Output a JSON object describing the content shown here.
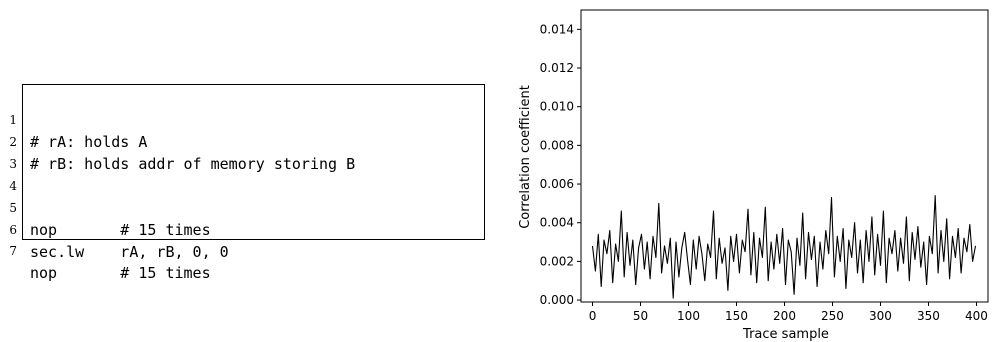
{
  "listing": {
    "lines": [
      {
        "no": "1",
        "text": "# rA: holds A"
      },
      {
        "no": "2",
        "text": "# rB: holds addr of memory storing B"
      },
      {
        "no": "3",
        "text": ""
      },
      {
        "no": "4",
        "text": ""
      },
      {
        "no": "5",
        "text": "nop       # 15 times"
      },
      {
        "no": "6",
        "text": "sec.lw    rA, rB, 0, 0"
      },
      {
        "no": "7",
        "text": "nop       # 15 times"
      }
    ]
  },
  "chart_data": {
    "type": "line",
    "title": "",
    "xlabel": "Trace sample",
    "ylabel": "Correlation coefficient",
    "xlim": [
      -12,
      412
    ],
    "ylim": [
      -0.0001,
      0.015
    ],
    "xticks": [
      0,
      50,
      100,
      150,
      200,
      250,
      300,
      350,
      400
    ],
    "yticks": [
      0.0,
      0.002,
      0.004,
      0.006,
      0.008,
      0.01,
      0.012,
      0.014
    ],
    "ytick_labels": [
      "0.000",
      "0.002",
      "0.004",
      "0.006",
      "0.008",
      "0.010",
      "0.012",
      "0.014"
    ],
    "grid": false,
    "legend": "none",
    "series": [
      {
        "color": "#000000",
        "x": [
          0,
          3,
          6,
          9,
          12,
          15,
          18,
          21,
          24,
          27,
          30,
          33,
          36,
          39,
          42,
          45,
          48,
          51,
          54,
          57,
          60,
          63,
          66,
          69,
          72,
          75,
          78,
          81,
          84,
          87,
          90,
          93,
          96,
          99,
          102,
          105,
          108,
          111,
          114,
          117,
          120,
          123,
          126,
          129,
          132,
          135,
          138,
          141,
          144,
          147,
          150,
          153,
          156,
          159,
          162,
          165,
          168,
          171,
          174,
          177,
          180,
          183,
          186,
          189,
          192,
          195,
          198,
          201,
          204,
          207,
          210,
          213,
          216,
          219,
          222,
          225,
          228,
          231,
          234,
          237,
          240,
          243,
          246,
          249,
          252,
          255,
          258,
          261,
          264,
          267,
          270,
          273,
          276,
          279,
          282,
          285,
          288,
          291,
          294,
          297,
          300,
          303,
          306,
          309,
          312,
          315,
          318,
          321,
          324,
          327,
          330,
          333,
          336,
          339,
          342,
          345,
          348,
          351,
          354,
          357,
          360,
          363,
          366,
          369,
          372,
          375,
          378,
          381,
          384,
          387,
          390,
          393,
          396,
          399
        ],
        "y": [
          0.0028,
          0.0015,
          0.0034,
          0.0007,
          0.0031,
          0.0024,
          0.0036,
          0.0009,
          0.0029,
          0.002,
          0.0046,
          0.0012,
          0.0035,
          0.0018,
          0.0031,
          0.0008,
          0.0027,
          0.0034,
          0.0016,
          0.003,
          0.0011,
          0.0033,
          0.0022,
          0.005,
          0.0014,
          0.0028,
          0.0019,
          0.0032,
          0.0001,
          0.003,
          0.0012,
          0.0027,
          0.0035,
          0.0021,
          0.0008,
          0.0031,
          0.0016,
          0.0033,
          0.0024,
          0.001,
          0.0029,
          0.0022,
          0.0046,
          0.0011,
          0.0032,
          0.0019,
          0.0027,
          0.0005,
          0.0033,
          0.002,
          0.0034,
          0.0014,
          0.0031,
          0.0025,
          0.0047,
          0.0013,
          0.0035,
          0.0009,
          0.0032,
          0.0022,
          0.0048,
          0.001,
          0.003,
          0.0016,
          0.0034,
          0.0019,
          0.0037,
          0.0008,
          0.0031,
          0.0025,
          0.0003,
          0.0032,
          0.0018,
          0.0045,
          0.0011,
          0.0035,
          0.0021,
          0.0033,
          0.0007,
          0.003,
          0.0016,
          0.0036,
          0.0024,
          0.0053,
          0.0012,
          0.0033,
          0.002,
          0.0037,
          0.0006,
          0.0031,
          0.0022,
          0.004,
          0.0014,
          0.0031,
          0.0009,
          0.0036,
          0.002,
          0.0043,
          0.0013,
          0.0034,
          0.0018,
          0.0046,
          0.0009,
          0.0032,
          0.0024,
          0.0036,
          0.0015,
          0.0032,
          0.0019,
          0.0043,
          0.001,
          0.0035,
          0.0021,
          0.0038,
          0.0017,
          0.003,
          0.0008,
          0.0033,
          0.0024,
          0.0054,
          0.0014,
          0.0036,
          0.002,
          0.0042,
          0.0011,
          0.0033,
          0.0022,
          0.0037,
          0.0014,
          0.0032,
          0.0025,
          0.0039,
          0.002,
          0.0028
        ]
      }
    ]
  }
}
